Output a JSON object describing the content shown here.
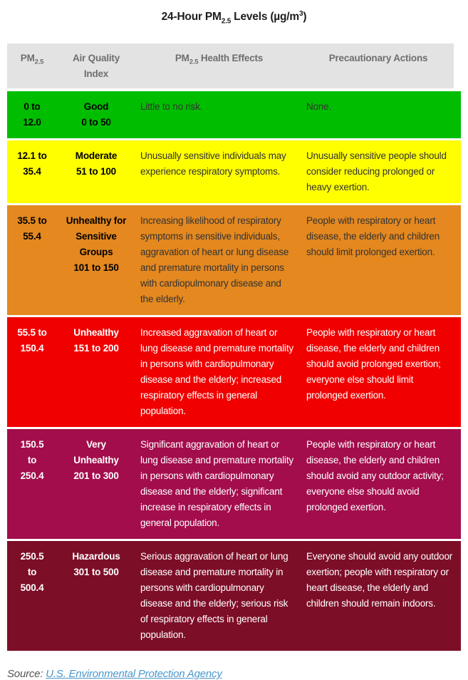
{
  "title": {
    "part1": "24-Hour PM",
    "sub1": "2.5",
    "part2": " Levels (µg/m",
    "sup1": "3",
    "part3": ")"
  },
  "chart_data": {
    "type": "table",
    "title": "24-Hour PM2.5 Levels (µg/m³)",
    "columns": [
      "PM2.5",
      "Air Quality Index",
      "PM2.5 Health Effects",
      "Precautionary Actions"
    ],
    "header": {
      "col1_prefix": "PM",
      "col1_sub": "2.5",
      "col2": "Air Quality Index",
      "col3_prefix": "PM",
      "col3_sub": "2.5",
      "col3_suffix": " Health Effects",
      "col4": "Precautionary Actions"
    },
    "rows": [
      {
        "range": "0 to 12.0",
        "category": "Good",
        "aqi": "0 to 50",
        "health": "Little to no risk.",
        "action": "None.",
        "bg": "#00bd00",
        "text_tone": "dark"
      },
      {
        "range": "12.1 to 35.4",
        "category": "Moderate",
        "aqi": "51 to 100",
        "health": "Unusually sensitive individuals may experience respiratory symptoms.",
        "action": "Unusually sensitive people should consider reducing prolonged or heavy exertion.",
        "bg": "#ffff00",
        "text_tone": "dark"
      },
      {
        "range": "35.5 to 55.4",
        "category": "Unhealthy for Sensitive Groups",
        "aqi": "101 to 150",
        "health": "Increasing likelihood of respiratory symptoms in sensitive individuals, aggravation of heart or lung disease and premature mortality in persons with cardiopulmonary disease and the elderly.",
        "action": "People with respiratory or heart disease, the elderly and children should limit prolonged exertion.",
        "bg": "#e4881f",
        "text_tone": "dark"
      },
      {
        "range": "55.5 to 150.4",
        "category": "Unhealthy",
        "aqi": "151 to 200",
        "health": "Increased aggravation of heart or lung disease and premature mortality in persons with cardiopulmonary disease and the elderly; increased respiratory effects in general population.",
        "action": "People with respiratory or heart disease, the elderly and children should avoid prolonged exertion; everyone else should limit prolonged exertion.",
        "bg": "#f10000",
        "text_tone": "light"
      },
      {
        "range": "150.5 to 250.4",
        "category": "Very Unhealthy",
        "aqi": "201 to 300",
        "health": "Significant aggravation of heart or lung disease and premature mortality in persons with cardiopulmonary disease and the elderly; significant increase in respiratory effects in general population.",
        "action": "People with respiratory or heart disease, the elderly and children should avoid any outdoor activity; everyone else should avoid prolonged exertion.",
        "bg": "#a30d4c",
        "text_tone": "light"
      },
      {
        "range": "250.5 to 500.4",
        "category": "Hazardous",
        "aqi": "301 to 500",
        "health": "Serious aggravation of heart or lung disease and premature mortality in persons with cardiopulmonary disease and the elderly; serious risk of respiratory effects in general population.",
        "action": "Everyone should avoid any outdoor exertion; people with respiratory or heart disease, the elderly and children should remain indoors.",
        "bg": "#7d0e27",
        "text_tone": "light"
      }
    ]
  },
  "footer": {
    "source_label": "Source:",
    "source_link_text": "U.S. Environmental Protection Agency"
  },
  "colors": {
    "header_bg": "#e3e3e3",
    "header_text": "#6e6e6e",
    "title_text": "#1d1d1d",
    "link": "#4a97cb",
    "dark_row_text": "#333333",
    "light_row_text": "#ffffff"
  }
}
